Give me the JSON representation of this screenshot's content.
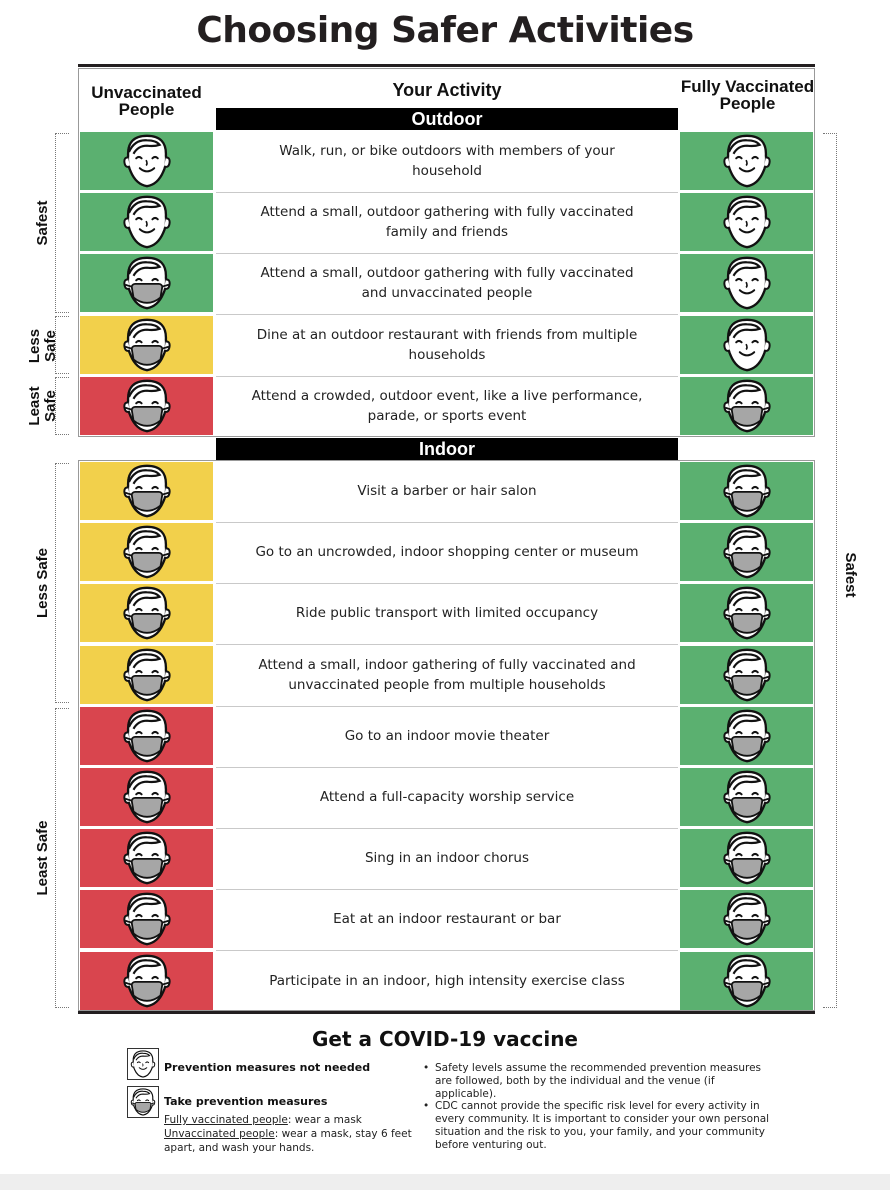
{
  "title": "Choosing Safer Activities",
  "headers": {
    "unvaccinated": "Unvaccinated People",
    "activity": "Your Activity",
    "vaccinated": "Fully Vaccinated People"
  },
  "sections": {
    "outdoor": "Outdoor",
    "indoor": "Indoor"
  },
  "colors": {
    "green": "#5bb070",
    "yellow": "#f2d04b",
    "red": "#d9454e",
    "mask": "#a6a6a6"
  },
  "outdoor_rows": [
    {
      "activity": "Walk, run, or bike outdoors with members of your household",
      "left": "green",
      "left_mask": false,
      "right": "green",
      "right_mask": false
    },
    {
      "activity": "Attend a small, outdoor gathering with fully vaccinated family and friends",
      "left": "green",
      "left_mask": false,
      "right": "green",
      "right_mask": false
    },
    {
      "activity": "Attend a small, outdoor gathering with fully vaccinated and unvaccinated people",
      "left": "green",
      "left_mask": true,
      "right": "green",
      "right_mask": false
    },
    {
      "activity": "Dine at an outdoor restaurant with friends from multiple households",
      "left": "yellow",
      "left_mask": true,
      "right": "green",
      "right_mask": false
    },
    {
      "activity": "Attend a crowded, outdoor event, like a live performance, parade, or sports event",
      "left": "red",
      "left_mask": true,
      "right": "green",
      "right_mask": true
    }
  ],
  "indoor_rows": [
    {
      "activity": "Visit a barber or hair salon",
      "left": "yellow",
      "left_mask": true,
      "right": "green",
      "right_mask": true
    },
    {
      "activity": "Go to an uncrowded, indoor shopping center or museum",
      "left": "yellow",
      "left_mask": true,
      "right": "green",
      "right_mask": true
    },
    {
      "activity": "Ride public transport with limited occupancy",
      "left": "yellow",
      "left_mask": true,
      "right": "green",
      "right_mask": true
    },
    {
      "activity": "Attend a small, indoor gathering of fully vaccinated and unvaccinated people from multiple households",
      "left": "yellow",
      "left_mask": true,
      "right": "green",
      "right_mask": true
    },
    {
      "activity": "Go to an indoor movie theater",
      "left": "red",
      "left_mask": true,
      "right": "green",
      "right_mask": true
    },
    {
      "activity": "Attend a full-capacity worship service",
      "left": "red",
      "left_mask": true,
      "right": "green",
      "right_mask": true
    },
    {
      "activity": "Sing in an indoor chorus",
      "left": "red",
      "left_mask": true,
      "right": "green",
      "right_mask": true
    },
    {
      "activity": "Eat at an indoor restaurant or bar",
      "left": "red",
      "left_mask": true,
      "right": "green",
      "right_mask": true
    },
    {
      "activity": "Participate in an indoor, high intensity exercise class",
      "left": "red",
      "left_mask": true,
      "right": "green",
      "right_mask": true
    }
  ],
  "side_labels": {
    "safest_left": "Safest",
    "less_safe_outdoor_line1": "Less",
    "less_safe_outdoor_line2": "Safe",
    "least_safe_outdoor_line1": "Least",
    "least_safe_outdoor_line2": "Safe",
    "less_safe_indoor": "Less Safe",
    "least_safe_indoor": "Least Safe",
    "safest_right": "Safest"
  },
  "cta": "Get a COVID-19 vaccine",
  "legend": {
    "no_measures": "Prevention measures not needed",
    "take_measures": "Take prevention measures",
    "vax_label": "Fully vaccinated people",
    "vax_text": ": wear a mask",
    "unvax_label": "Unvaccinated people",
    "unvax_text": ": wear a mask, stay 6 feet apart, and wash your hands."
  },
  "notes": [
    "Safety levels assume the recommended prevention measures are followed, both by the individual and the venue (if applicable).",
    "CDC cannot provide the specific risk level for every activity in every community. It is important to consider your own personal situation and the risk to you, your family, and your community before venturing out."
  ]
}
